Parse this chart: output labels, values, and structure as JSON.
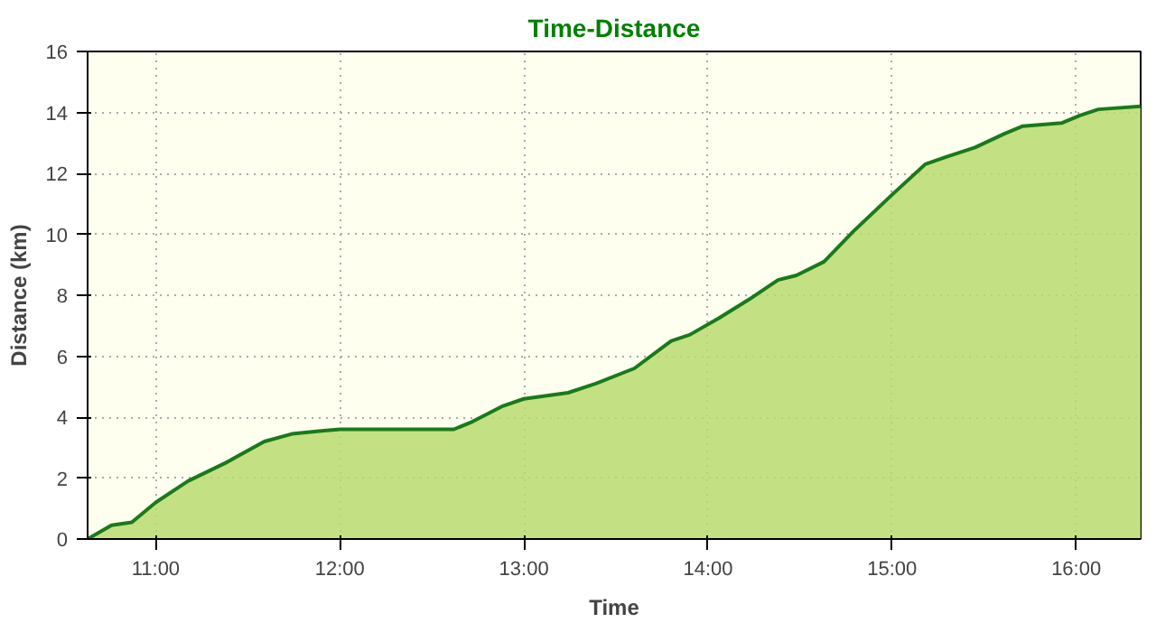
{
  "chart_data": {
    "type": "area",
    "title": "Time-Distance",
    "xlabel": "Time",
    "ylabel": "Distance (km)",
    "x": [
      10.63,
      10.76,
      10.87,
      11.0,
      11.175,
      11.38,
      11.59,
      11.74,
      11.9,
      12.0,
      12.62,
      12.72,
      12.88,
      13.0,
      13.24,
      13.39,
      13.6,
      13.8,
      13.9,
      14.06,
      14.22,
      14.38,
      14.48,
      14.63,
      14.79,
      15.0,
      15.18,
      15.3,
      15.45,
      15.61,
      15.71,
      15.92,
      16.02,
      16.12,
      16.35
    ],
    "series": [
      {
        "color": "#1a7a1a",
        "values": [
          0,
          0.45,
          0.55,
          1.2,
          1.9,
          2.5,
          3.2,
          3.45,
          3.55,
          3.6,
          3.6,
          3.85,
          4.35,
          4.6,
          4.8,
          5.1,
          5.6,
          6.5,
          6.7,
          7.25,
          7.85,
          8.5,
          8.65,
          9.1,
          10.1,
          11.3,
          12.3,
          12.55,
          12.85,
          13.3,
          13.55,
          13.65,
          13.9,
          14.1,
          14.2
        ]
      }
    ],
    "xlim": [
      10.63,
      16.35
    ],
    "xticks": [
      {
        "value": 11,
        "label": "11:00"
      },
      {
        "value": 12,
        "label": "12:00"
      },
      {
        "value": 13,
        "label": "13:00"
      },
      {
        "value": 14,
        "label": "14:00"
      },
      {
        "value": 15,
        "label": "15:00"
      },
      {
        "value": 16,
        "label": "16:00"
      }
    ],
    "ylim": [
      0,
      16
    ],
    "yticks": [
      0,
      2,
      4,
      6,
      8,
      10,
      12,
      14,
      16
    ],
    "grid": true
  }
}
